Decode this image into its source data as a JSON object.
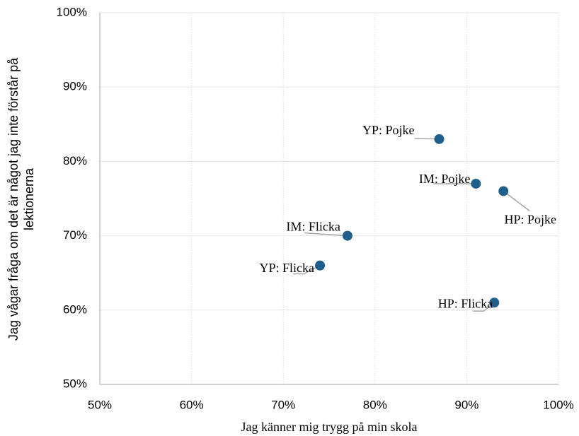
{
  "chart_data": {
    "type": "scatter",
    "xlabel": "Jag känner mig trygg på min skola",
    "ylabel": [
      "Jag vågar fråga om det är något jag inte förstår på",
      "lektionerna"
    ],
    "labels": [
      "YP: Pojke",
      "IM: Pojke",
      "HP: Pojke",
      "IM: Flicka",
      "YP: Flicka",
      "HP: Flicka"
    ],
    "x": [
      87,
      91,
      94,
      77,
      74,
      93
    ],
    "values": [
      83,
      77,
      76,
      70,
      66,
      61
    ],
    "color": "#1f5f8b",
    "grid": true,
    "xlim": [
      50,
      100
    ],
    "ylim": [
      50,
      100
    ],
    "xticks": [
      {
        "value": 50,
        "label": "50%"
      },
      {
        "value": 60,
        "label": "60%"
      },
      {
        "value": 70,
        "label": "70%"
      },
      {
        "value": 80,
        "label": "80%"
      },
      {
        "value": 90,
        "label": "90%"
      },
      {
        "value": 100,
        "label": "100%"
      }
    ],
    "yticks": [
      {
        "value": 50,
        "label": "50%"
      },
      {
        "value": 60,
        "label": "60%"
      },
      {
        "value": 70,
        "label": "70%"
      },
      {
        "value": 80,
        "label": "80%"
      },
      {
        "value": 90,
        "label": "90%"
      },
      {
        "value": 100,
        "label": "100%"
      }
    ]
  }
}
